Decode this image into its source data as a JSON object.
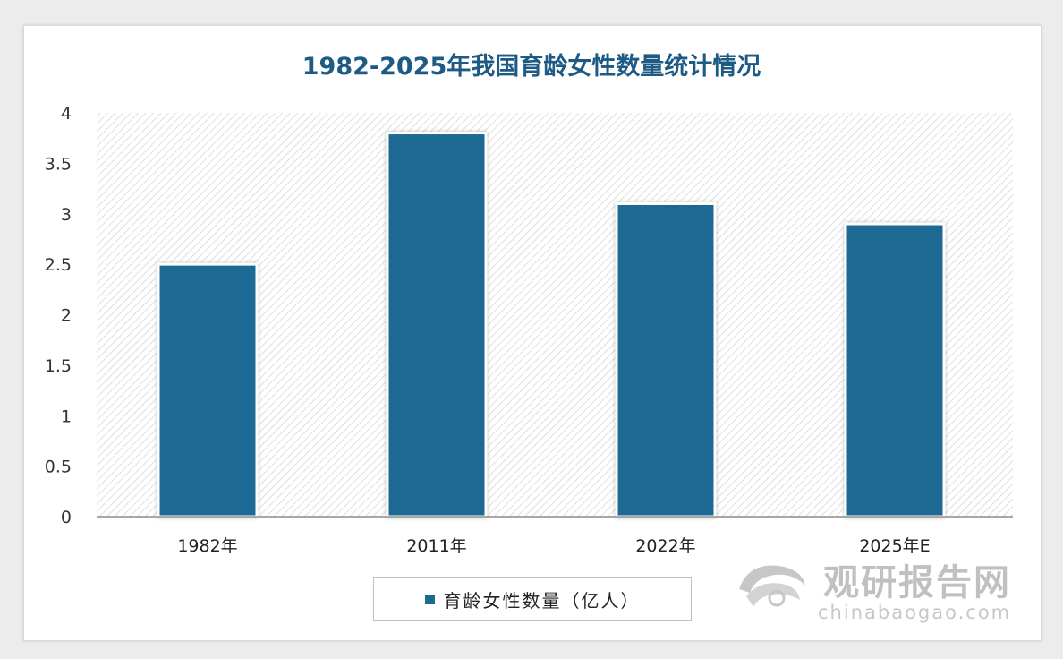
{
  "chart_data": {
    "type": "bar",
    "title": "1982-2025年我国育龄女性数量统计情况",
    "categories": [
      "1982年",
      "2011年",
      "2022年",
      "2025年E"
    ],
    "series": [
      {
        "name": "育龄女性数量（亿人）",
        "values": [
          2.5,
          3.8,
          3.1,
          2.9
        ]
      }
    ],
    "xlabel": "",
    "ylabel": "",
    "ylim": [
      0,
      4
    ],
    "yticks": [
      "0",
      "0.5",
      "1",
      "1.5",
      "2",
      "2.5",
      "3",
      "3.5",
      "4"
    ],
    "grid": false,
    "legend_position": "bottom",
    "colors": {
      "bar": "#1a6a93",
      "title": "#1d5b85"
    }
  },
  "watermark": {
    "name_cn": "观研报告网",
    "domain": "chinabaogao.com"
  }
}
